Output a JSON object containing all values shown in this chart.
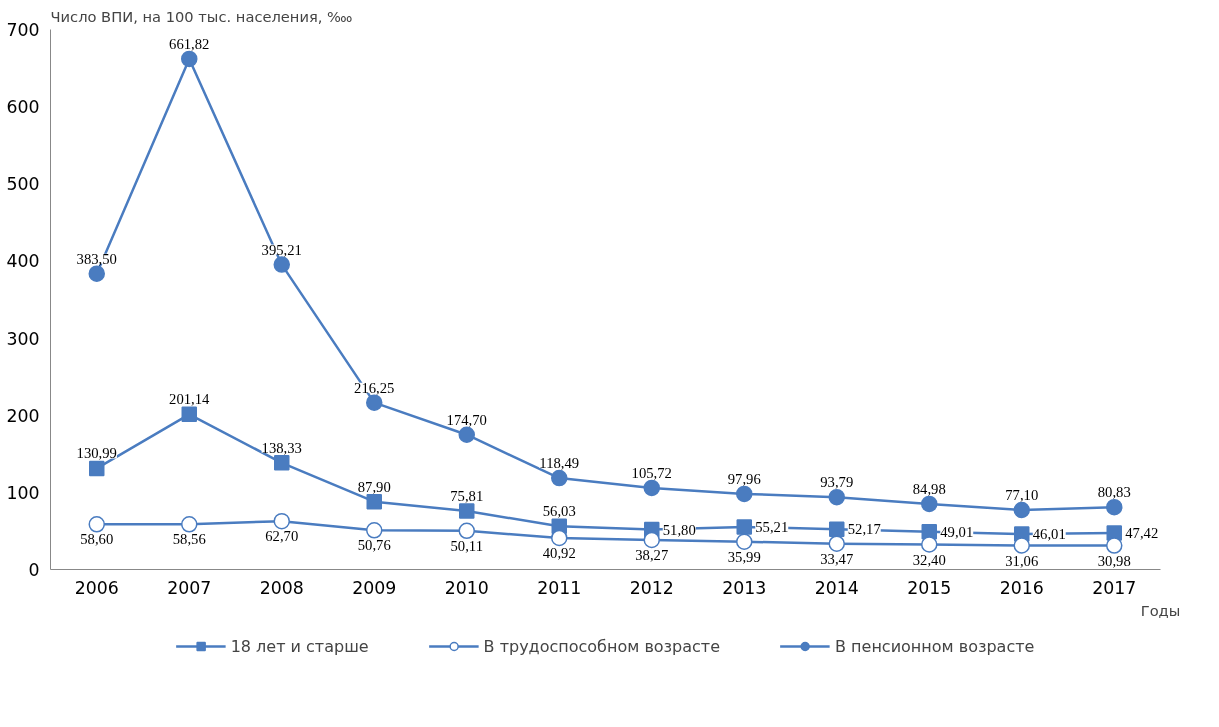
{
  "chart_data": {
    "type": "line",
    "ylabel": "Число ВПИ, на 100 тыс. населения, ‱",
    "xlabel": "Годы",
    "categories": [
      "2006",
      "2007",
      "2008",
      "2009",
      "2010",
      "2011",
      "2012",
      "2013",
      "2014",
      "2015",
      "2016",
      "2017"
    ],
    "ylim": [
      0,
      700
    ],
    "yticks": [
      0,
      100,
      200,
      300,
      400,
      500,
      600,
      700
    ],
    "grid": false,
    "legend": "bottom",
    "line_style": "solid",
    "series": [
      {
        "name": "18 лет и старше",
        "color": "#4a7cc0",
        "marker": "square",
        "values": [
          130.99,
          201.14,
          138.33,
          87.9,
          75.81,
          56.03,
          51.8,
          55.21,
          52.17,
          49.01,
          46.01,
          47.42
        ],
        "value_labels": [
          "130,99",
          "201,14",
          "138,33",
          "87,90",
          "75,81",
          "56,03",
          "51,80",
          "55,21",
          "52,17",
          "49,01",
          "46,01",
          "47,42"
        ]
      },
      {
        "name": "В трудоспособном возрасте",
        "color": "#4a7cc0",
        "marker": "circle",
        "values": [
          58.6,
          58.56,
          62.7,
          50.76,
          50.11,
          40.92,
          38.27,
          35.99,
          33.47,
          32.4,
          31.06,
          30.98
        ],
        "value_labels": [
          "58,60",
          "58,56",
          "62,70",
          "50,76",
          "50,11",
          "40,92",
          "38,27",
          "35,99",
          "33,47",
          "32,40",
          "31,06",
          "30,98"
        ]
      },
      {
        "name": "В пенсионном возрасте",
        "color": "#4a7cc0",
        "marker": "circle",
        "values": [
          383.5,
          661.82,
          395.21,
          216.25,
          174.7,
          118.49,
          105.72,
          97.96,
          93.79,
          84.98,
          77.1,
          80.83
        ],
        "value_labels": [
          "383,50",
          "661,82",
          "395,21",
          "216,25",
          "174,70",
          "118,49",
          "105,72",
          "97,96",
          "93,79",
          "84,98",
          "77,10",
          "80,83"
        ]
      }
    ]
  }
}
